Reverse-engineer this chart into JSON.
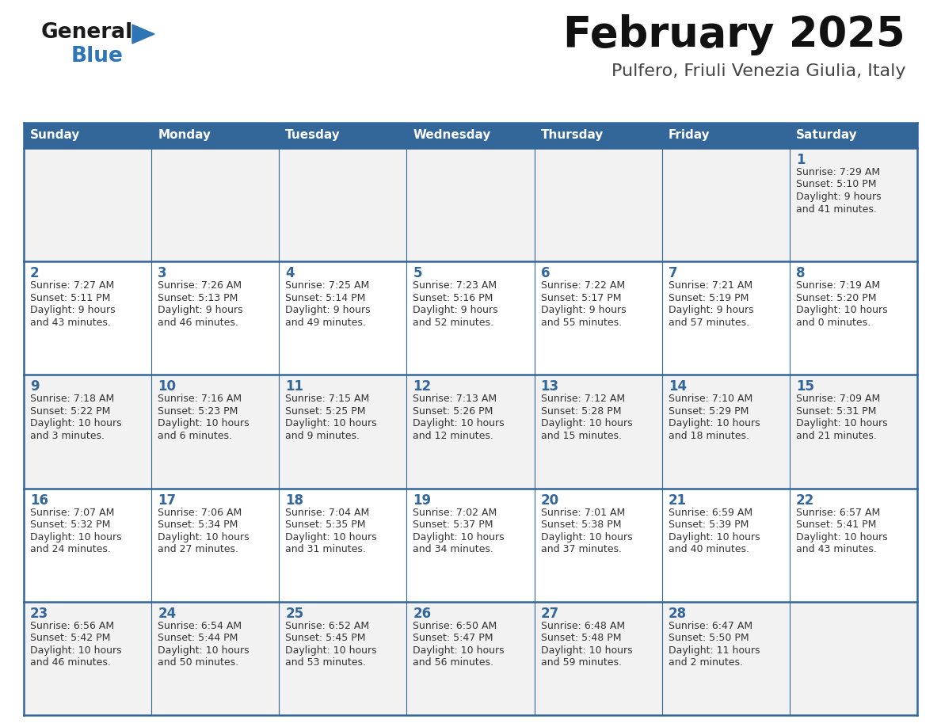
{
  "title": "February 2025",
  "subtitle": "Pulfero, Friuli Venezia Giulia, Italy",
  "header_color": "#336699",
  "header_text_color": "#ffffff",
  "cell_bg_even": "#f2f2f2",
  "cell_bg_odd": "#ffffff",
  "cell_border_color": "#336699",
  "day_number_color": "#336699",
  "text_color": "#333333",
  "days_of_week": [
    "Sunday",
    "Monday",
    "Tuesday",
    "Wednesday",
    "Thursday",
    "Friday",
    "Saturday"
  ],
  "calendar_data": [
    [
      {
        "day": "",
        "sunrise": "",
        "sunset": "",
        "daylight": ""
      },
      {
        "day": "",
        "sunrise": "",
        "sunset": "",
        "daylight": ""
      },
      {
        "day": "",
        "sunrise": "",
        "sunset": "",
        "daylight": ""
      },
      {
        "day": "",
        "sunrise": "",
        "sunset": "",
        "daylight": ""
      },
      {
        "day": "",
        "sunrise": "",
        "sunset": "",
        "daylight": ""
      },
      {
        "day": "",
        "sunrise": "",
        "sunset": "",
        "daylight": ""
      },
      {
        "day": "1",
        "sunrise": "7:29 AM",
        "sunset": "5:10 PM",
        "daylight": "9 hours and 41 minutes."
      }
    ],
    [
      {
        "day": "2",
        "sunrise": "7:27 AM",
        "sunset": "5:11 PM",
        "daylight": "9 hours and 43 minutes."
      },
      {
        "day": "3",
        "sunrise": "7:26 AM",
        "sunset": "5:13 PM",
        "daylight": "9 hours and 46 minutes."
      },
      {
        "day": "4",
        "sunrise": "7:25 AM",
        "sunset": "5:14 PM",
        "daylight": "9 hours and 49 minutes."
      },
      {
        "day": "5",
        "sunrise": "7:23 AM",
        "sunset": "5:16 PM",
        "daylight": "9 hours and 52 minutes."
      },
      {
        "day": "6",
        "sunrise": "7:22 AM",
        "sunset": "5:17 PM",
        "daylight": "9 hours and 55 minutes."
      },
      {
        "day": "7",
        "sunrise": "7:21 AM",
        "sunset": "5:19 PM",
        "daylight": "9 hours and 57 minutes."
      },
      {
        "day": "8",
        "sunrise": "7:19 AM",
        "sunset": "5:20 PM",
        "daylight": "10 hours and 0 minutes."
      }
    ],
    [
      {
        "day": "9",
        "sunrise": "7:18 AM",
        "sunset": "5:22 PM",
        "daylight": "10 hours and 3 minutes."
      },
      {
        "day": "10",
        "sunrise": "7:16 AM",
        "sunset": "5:23 PM",
        "daylight": "10 hours and 6 minutes."
      },
      {
        "day": "11",
        "sunrise": "7:15 AM",
        "sunset": "5:25 PM",
        "daylight": "10 hours and 9 minutes."
      },
      {
        "day": "12",
        "sunrise": "7:13 AM",
        "sunset": "5:26 PM",
        "daylight": "10 hours and 12 minutes."
      },
      {
        "day": "13",
        "sunrise": "7:12 AM",
        "sunset": "5:28 PM",
        "daylight": "10 hours and 15 minutes."
      },
      {
        "day": "14",
        "sunrise": "7:10 AM",
        "sunset": "5:29 PM",
        "daylight": "10 hours and 18 minutes."
      },
      {
        "day": "15",
        "sunrise": "7:09 AM",
        "sunset": "5:31 PM",
        "daylight": "10 hours and 21 minutes."
      }
    ],
    [
      {
        "day": "16",
        "sunrise": "7:07 AM",
        "sunset": "5:32 PM",
        "daylight": "10 hours and 24 minutes."
      },
      {
        "day": "17",
        "sunrise": "7:06 AM",
        "sunset": "5:34 PM",
        "daylight": "10 hours and 27 minutes."
      },
      {
        "day": "18",
        "sunrise": "7:04 AM",
        "sunset": "5:35 PM",
        "daylight": "10 hours and 31 minutes."
      },
      {
        "day": "19",
        "sunrise": "7:02 AM",
        "sunset": "5:37 PM",
        "daylight": "10 hours and 34 minutes."
      },
      {
        "day": "20",
        "sunrise": "7:01 AM",
        "sunset": "5:38 PM",
        "daylight": "10 hours and 37 minutes."
      },
      {
        "day": "21",
        "sunrise": "6:59 AM",
        "sunset": "5:39 PM",
        "daylight": "10 hours and 40 minutes."
      },
      {
        "day": "22",
        "sunrise": "6:57 AM",
        "sunset": "5:41 PM",
        "daylight": "10 hours and 43 minutes."
      }
    ],
    [
      {
        "day": "23",
        "sunrise": "6:56 AM",
        "sunset": "5:42 PM",
        "daylight": "10 hours and 46 minutes."
      },
      {
        "day": "24",
        "sunrise": "6:54 AM",
        "sunset": "5:44 PM",
        "daylight": "10 hours and 50 minutes."
      },
      {
        "day": "25",
        "sunrise": "6:52 AM",
        "sunset": "5:45 PM",
        "daylight": "10 hours and 53 minutes."
      },
      {
        "day": "26",
        "sunrise": "6:50 AM",
        "sunset": "5:47 PM",
        "daylight": "10 hours and 56 minutes."
      },
      {
        "day": "27",
        "sunrise": "6:48 AM",
        "sunset": "5:48 PM",
        "daylight": "10 hours and 59 minutes."
      },
      {
        "day": "28",
        "sunrise": "6:47 AM",
        "sunset": "5:50 PM",
        "daylight": "11 hours and 2 minutes."
      },
      {
        "day": "",
        "sunrise": "",
        "sunset": "",
        "daylight": ""
      }
    ]
  ]
}
